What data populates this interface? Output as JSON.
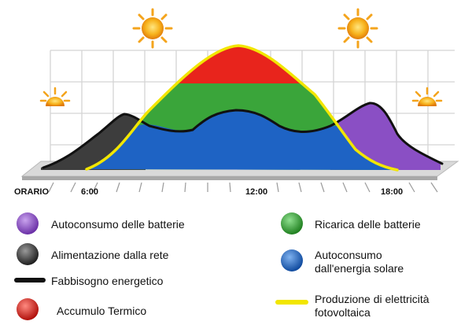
{
  "time_axis": {
    "label": "ORARIO",
    "ticks": [
      "6:00",
      "12:00",
      "18:00"
    ]
  },
  "legend": [
    {
      "id": "battery-self-consumption",
      "label": "Autoconsumo delle batterie",
      "color": "#8a4fc4",
      "icon": "purple-circle-icon"
    },
    {
      "id": "battery-charging",
      "label": "Ricarica delle batterie",
      "color": "#3aa53a",
      "icon": "green-circle-icon"
    },
    {
      "id": "grid-supply",
      "label": "Alimentazione dalla rete",
      "color": "#3d3d3d",
      "icon": "gray-circle-icon"
    },
    {
      "id": "solar-self-consumption",
      "label_line1": "Autoconsumo",
      "label_line2": "dall'energia solare",
      "color": "#1e63c4",
      "icon": "blue-circle-icon"
    },
    {
      "id": "energy-demand",
      "label": "Fabbisogno energetico",
      "color": "#111111",
      "icon": "black-line-icon"
    },
    {
      "id": "pv-production",
      "label_line1": "Produzione di elettricità",
      "label_line2": "fotovoltaica",
      "color": "#f2e600",
      "icon": "yellow-line-icon"
    },
    {
      "id": "thermal-storage",
      "label": "Accumulo Termico",
      "color": "#e8241c",
      "icon": "red-circle-icon"
    }
  ],
  "colors": {
    "thermal": "#e8241c",
    "charging": "#3aa53a",
    "solar_self": "#1e63c4",
    "battery_self": "#8a4fc4",
    "grid": "#3d3d3d",
    "pv_line": "#f2e600",
    "demand_line": "#111111",
    "platform": "#d9d9d9",
    "sun": "#f5a623"
  }
}
